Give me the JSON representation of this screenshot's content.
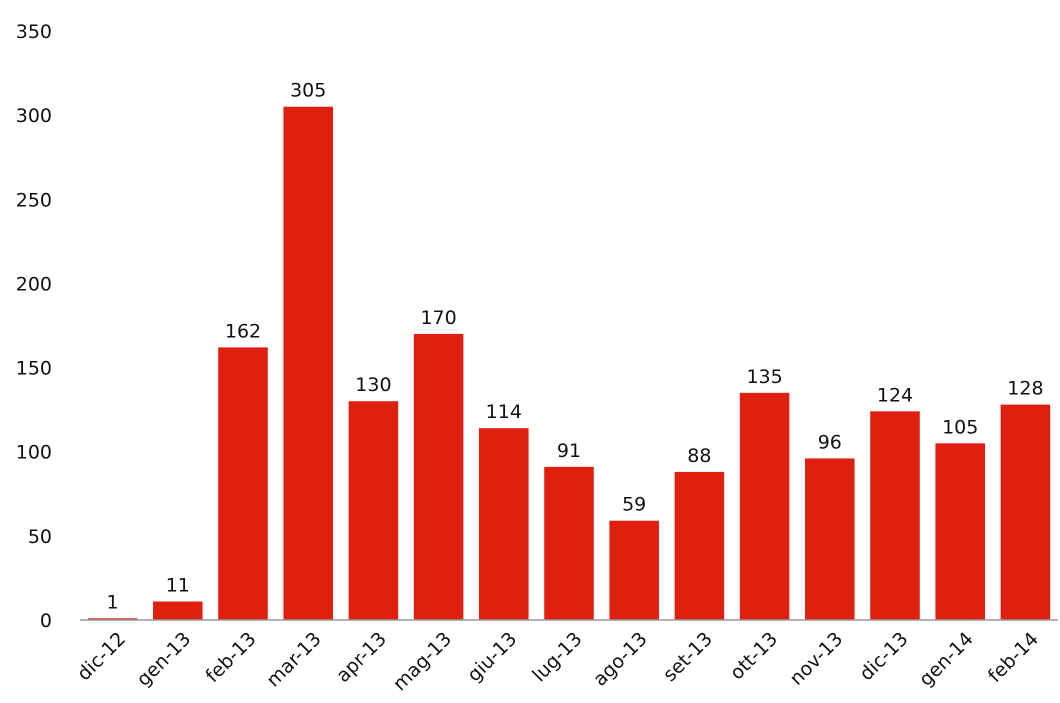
{
  "chart_data": {
    "type": "bar",
    "title": "",
    "xlabel": "",
    "ylabel": "",
    "ylim": [
      0,
      350
    ],
    "yticks": [
      0,
      50,
      100,
      150,
      200,
      250,
      300,
      350
    ],
    "grid": false,
    "legend": "none",
    "bar_color": "#e0200f",
    "categories": [
      "dic-12",
      "gen-13",
      "feb-13",
      "mar-13",
      "apr-13",
      "mag-13",
      "giu-13",
      "lug-13",
      "ago-13",
      "set-13",
      "ott-13",
      "nov-13",
      "dic-13",
      "gen-14",
      "feb-14"
    ],
    "values": [
      1,
      11,
      162,
      305,
      130,
      170,
      114,
      91,
      59,
      88,
      135,
      96,
      124,
      105,
      128
    ],
    "data_labels": [
      "1",
      "11",
      "162",
      "305",
      "130",
      "170",
      "114",
      "91",
      "59",
      "88",
      "135",
      "96",
      "124",
      "105",
      "128"
    ]
  }
}
